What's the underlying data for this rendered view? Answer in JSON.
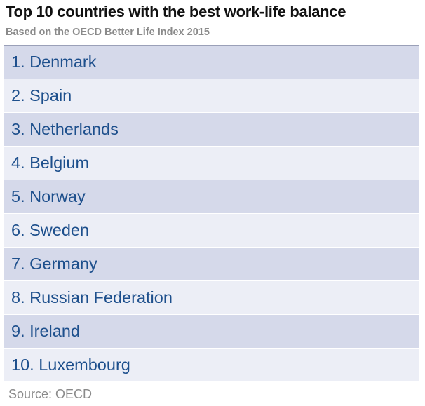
{
  "header": {
    "title": "Top 10 countries with the best work-life balance",
    "subtitle": "Based on the OECD Better Life Index 2015"
  },
  "list": {
    "items": [
      "1. Denmark",
      "2. Spain",
      "3. Netherlands",
      "4. Belgium",
      "5. Norway",
      "6. Sweden",
      "7. Germany",
      "8. Russian Federation",
      "9. Ireland",
      "10. Luxembourg"
    ]
  },
  "footer": {
    "source": "Source: OECD"
  }
}
